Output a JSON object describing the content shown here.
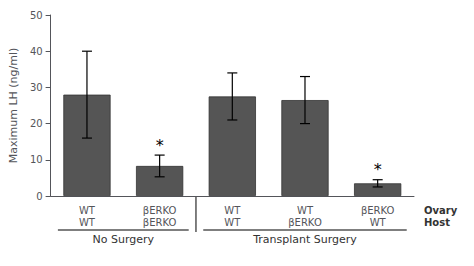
{
  "chart_data": {
    "type": "bar",
    "categories": [
      "WT\nWT",
      "βERKO\nβERKO",
      "WT\nWT",
      "WT\nβERKO",
      "βERKO\nWT"
    ],
    "values": [
      28.0,
      8.3,
      27.5,
      26.5,
      3.5
    ],
    "errors": [
      12.0,
      3.0,
      6.5,
      6.5,
      1.0
    ],
    "color": "#555555",
    "ylim": [
      0,
      50
    ],
    "yticks": [
      0,
      10,
      20,
      30,
      40,
      50
    ],
    "ylabel": "Maximum LH (ng/ml)",
    "grid": false,
    "annotations": [
      {
        "text": "*",
        "index": 1
      },
      {
        "text": "*",
        "index": 4
      }
    ],
    "groups": [
      {
        "label": "No Surgery",
        "from": 0,
        "to": 1
      },
      {
        "label": "Transplant Surgery",
        "from": 2,
        "to": 4
      }
    ],
    "row_label": "Ovary\nHost"
  }
}
